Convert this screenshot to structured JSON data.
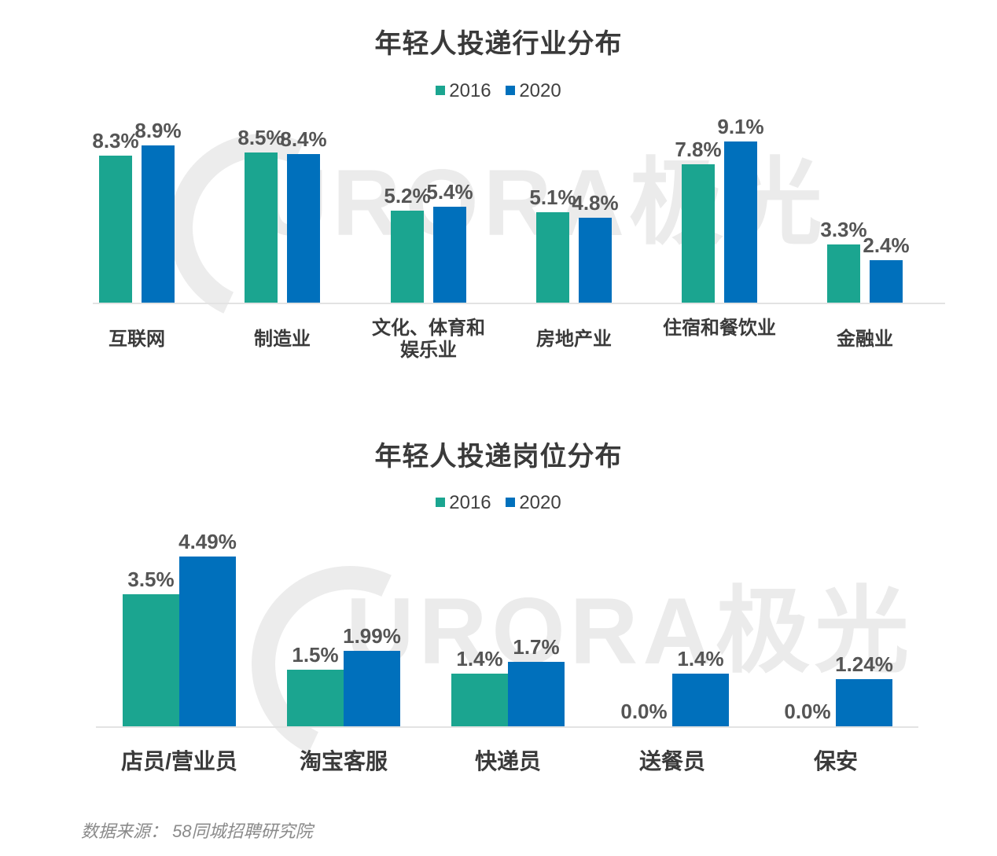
{
  "colors": {
    "s2016": "#1ba590",
    "s2020": "#0070bc",
    "text": "#404040",
    "value_text": "#555555"
  },
  "watermark": {
    "text": "URORA极光"
  },
  "source": "数据来源： 58同城招聘研究院",
  "chart_data": [
    {
      "type": "bar",
      "title": "年轻人投递行业分布",
      "categories": [
        "互联网",
        "制造业",
        "文化、体育和娱乐业",
        "房地产业",
        "住宿和餐饮业",
        "金融业"
      ],
      "series": [
        {
          "name": "2016",
          "values": [
            8.3,
            8.5,
            5.2,
            5.1,
            7.8,
            3.3
          ],
          "labels": [
            "8.3%",
            "8.5%",
            "5.2%",
            "5.1%",
            "7.8%",
            "3.3%"
          ]
        },
        {
          "name": "2020",
          "values": [
            8.9,
            8.4,
            5.4,
            4.8,
            9.1,
            2.4
          ],
          "labels": [
            "8.9%",
            "8.4%",
            "5.4%",
            "4.8%",
            "9.1%",
            "2.4%"
          ]
        }
      ],
      "legend": [
        "2016",
        "2020"
      ],
      "legend_position": "top",
      "xlabel": "",
      "ylabel": "",
      "unit": "%",
      "grid": false,
      "ylim": [
        0,
        10
      ]
    },
    {
      "type": "bar",
      "title": "年轻人投递岗位分布",
      "categories": [
        "店员/营业员",
        "淘宝客服",
        "快递员",
        "送餐员",
        "保安"
      ],
      "series": [
        {
          "name": "2016",
          "values": [
            3.5,
            1.5,
            1.4,
            0.0,
            0.0
          ],
          "labels": [
            "3.5%",
            "1.5%",
            "1.4%",
            "0.0%",
            "0.0%"
          ]
        },
        {
          "name": "2020",
          "values": [
            4.49,
            1.99,
            1.7,
            1.4,
            1.24
          ],
          "labels": [
            "4.49%",
            "1.99%",
            "1.7%",
            "1.4%",
            "1.24%"
          ]
        }
      ],
      "legend": [
        "2016",
        "2020"
      ],
      "legend_position": "top",
      "xlabel": "",
      "ylabel": "",
      "unit": "%",
      "grid": false,
      "ylim": [
        0,
        5
      ]
    }
  ]
}
